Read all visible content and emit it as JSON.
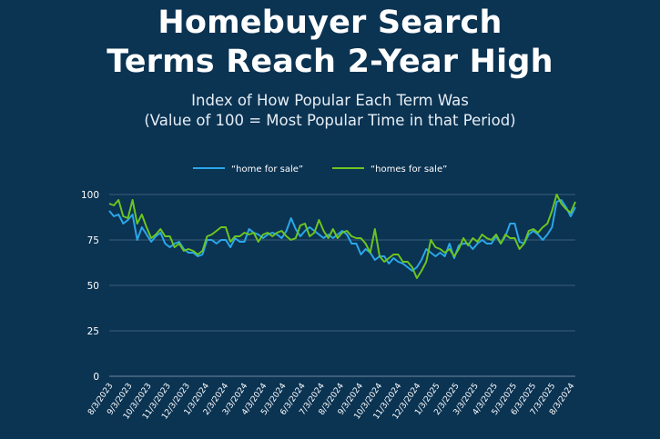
{
  "header": {
    "title_line1": "Homebuyer Search",
    "title_line2": "Terms Reach 2-Year High",
    "subtitle_line1": "Index of How Popular Each Term Was",
    "subtitle_line2": "(Value of 100 = Most Popular Time in that Period)"
  },
  "colors": {
    "background": "#0b3352",
    "series_home_for_sale": "#2aa7ea",
    "series_homes_for_sale": "#6cc520",
    "gridline": "#3d5f7a"
  },
  "chart_data": {
    "type": "line",
    "title": "Homebuyer Search Terms Reach 2-Year High",
    "subtitle": "Index of How Popular Each Term Was (Value of 100 = Most Popular Time in that Period)",
    "xlabel": "",
    "ylabel": "",
    "ylim": [
      0,
      100
    ],
    "yticks": [
      0,
      25,
      50,
      75,
      100
    ],
    "grid": "horizontal",
    "legend": "top-center",
    "x_tick_labels": [
      "8/3/2023",
      "9/3/2023",
      "10/3/2023",
      "11/3/2023",
      "12/3/2023",
      "1/3/2024",
      "2/3/2024",
      "3/3/2024",
      "4/3/2024",
      "5/3/2024",
      "6/3/2024",
      "7/3/2024",
      "8/3/2024",
      "9/3/2024",
      "10/3/2024",
      "11/3/2024",
      "12/3/2024",
      "1/3/2025",
      "2/3/2025",
      "3/3/2025",
      "4/3/2025",
      "5/3/2025",
      "6/3/2025",
      "7/3/2025",
      "8/3/2024"
    ],
    "series": [
      {
        "name": "“home for sale”",
        "color": "#2aa7ea",
        "values": [
          91,
          88,
          89,
          84,
          86,
          89,
          75,
          82,
          78,
          74,
          77,
          79,
          73,
          71,
          73,
          74,
          70,
          68,
          68,
          66,
          67,
          75,
          75,
          73,
          75,
          75,
          71,
          76,
          74,
          74,
          81,
          79,
          78,
          76,
          78,
          79,
          78,
          76,
          80,
          87,
          81,
          77,
          80,
          82,
          80,
          78,
          76,
          78,
          76,
          78,
          80,
          78,
          73,
          73,
          67,
          70,
          68,
          64,
          66,
          66,
          62,
          65,
          63,
          62,
          60,
          58,
          60,
          64,
          70,
          68,
          66,
          68,
          66,
          73,
          65,
          72,
          73,
          73,
          70,
          73,
          75,
          73,
          73,
          77,
          73,
          77,
          84,
          84,
          74,
          73,
          78,
          80,
          78,
          75,
          78,
          82,
          96,
          97,
          93,
          88,
          93
        ]
      },
      {
        "name": "“homes for sale”",
        "color": "#6cc520",
        "values": [
          95,
          94,
          97,
          88,
          87,
          97,
          84,
          89,
          82,
          76,
          78,
          81,
          77,
          77,
          71,
          73,
          69,
          70,
          69,
          67,
          69,
          77,
          78,
          80,
          82,
          82,
          74,
          77,
          77,
          79,
          78,
          79,
          74,
          78,
          79,
          77,
          79,
          80,
          77,
          75,
          76,
          83,
          84,
          77,
          79,
          86,
          80,
          76,
          81,
          76,
          79,
          80,
          77,
          76,
          76,
          73,
          68,
          81,
          66,
          63,
          65,
          67,
          67,
          63,
          63,
          60,
          54,
          58,
          63,
          75,
          71,
          70,
          68,
          70,
          66,
          70,
          76,
          72,
          76,
          74,
          78,
          76,
          75,
          78,
          73,
          78,
          76,
          76,
          70,
          73,
          80,
          81,
          79,
          82,
          84,
          91,
          100,
          95,
          92,
          90,
          96
        ]
      }
    ]
  }
}
